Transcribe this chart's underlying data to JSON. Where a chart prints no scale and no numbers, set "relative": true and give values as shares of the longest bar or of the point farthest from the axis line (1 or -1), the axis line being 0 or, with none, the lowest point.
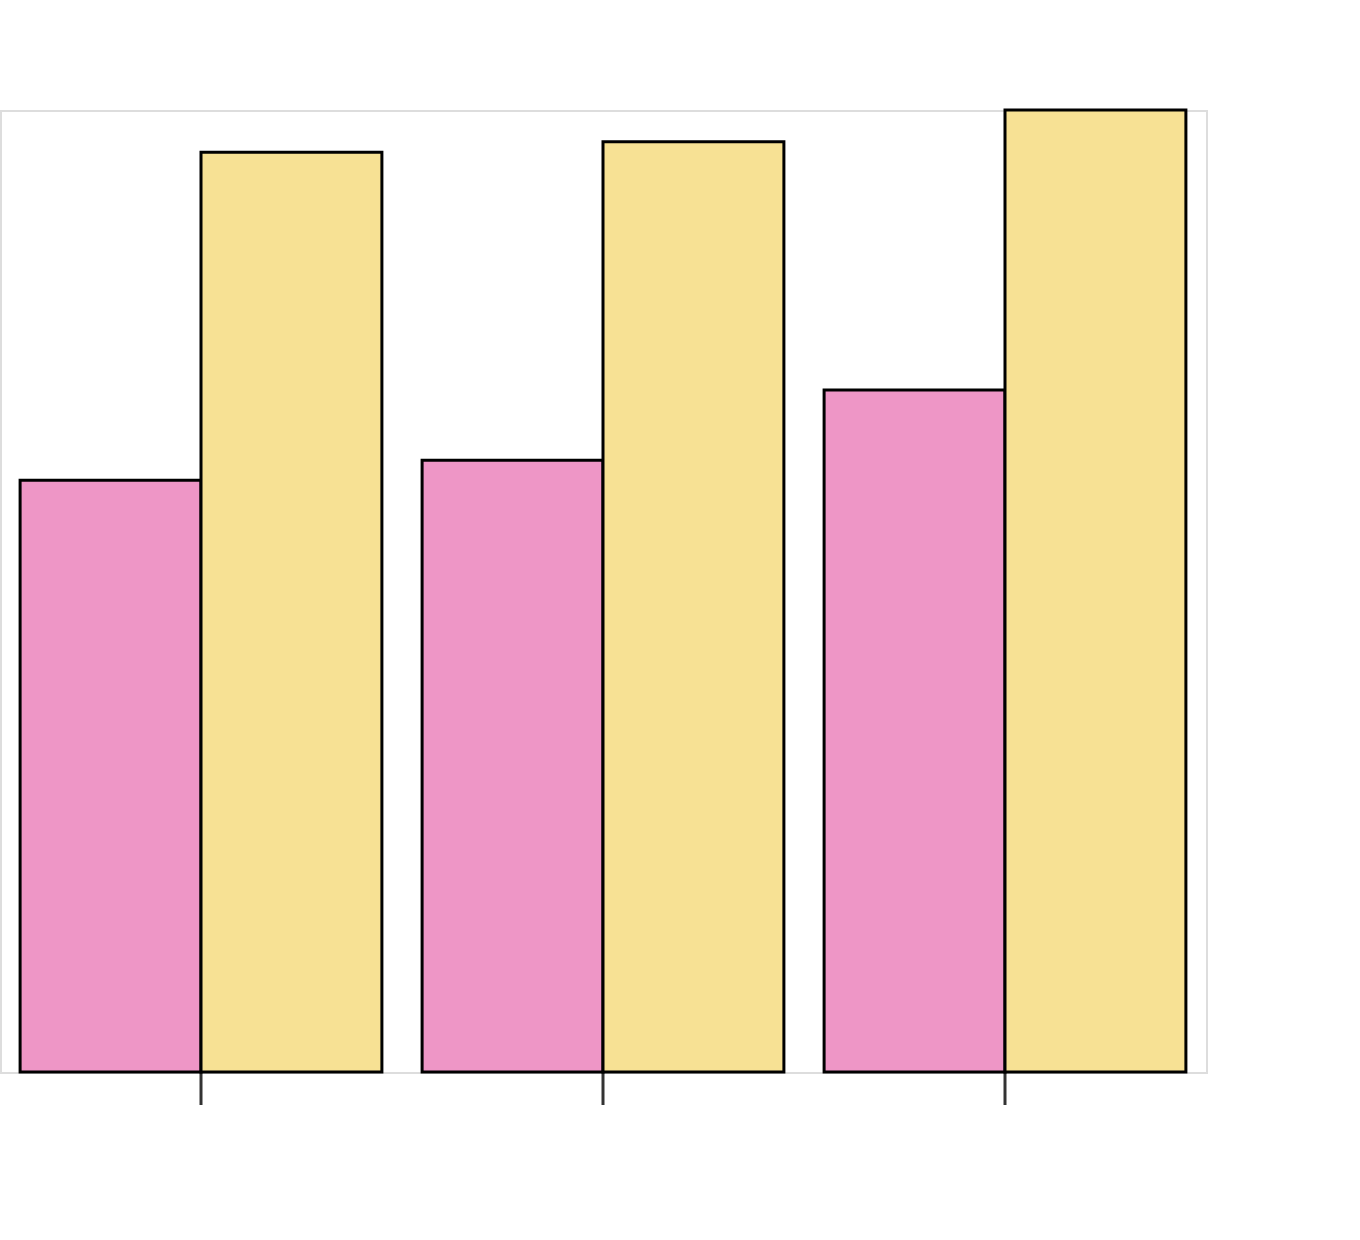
{
  "chart_data": {
    "type": "bar",
    "relative": true,
    "categories": [
      null,
      null,
      null
    ],
    "legend": false,
    "series": [
      {
        "color": "#ee96c6",
        "values": [
          0.615,
          0.636,
          0.709
        ]
      },
      {
        "color": "#f7e194",
        "values": [
          0.956,
          0.967,
          1.0
        ]
      }
    ]
  }
}
